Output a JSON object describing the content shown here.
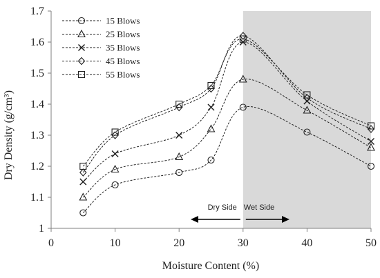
{
  "chart_data": {
    "type": "line",
    "xlabel": "Moisture Content (%)",
    "ylabel": "Dry Density  (g/cm³)",
    "xlim": [
      0,
      50
    ],
    "ylim": [
      1,
      1.7
    ],
    "xticks": [
      "0",
      "10",
      "20",
      "30",
      "40",
      "50"
    ],
    "yticks": [
      "1",
      "1.1",
      "1.2",
      "1.3",
      "1.4",
      "1.5",
      "1.6",
      "1.7"
    ],
    "grid": false,
    "legend": "top-left",
    "shaded_region": {
      "x_from": 30,
      "x_to": 50,
      "color": "#d9d9d9"
    },
    "annotations": {
      "dry_side": "Dry Side",
      "wet_side": "Wet Side"
    },
    "x": [
      5,
      10,
      20,
      25,
      30,
      40,
      50
    ],
    "series": [
      {
        "name": "15 Blows",
        "marker": "circle",
        "values": [
          1.05,
          1.14,
          1.18,
          1.22,
          1.39,
          1.31,
          1.2
        ]
      },
      {
        "name": "25 Blows",
        "marker": "triangle",
        "values": [
          1.1,
          1.19,
          1.23,
          1.32,
          1.48,
          1.38,
          1.26
        ]
      },
      {
        "name": "35 Blows",
        "marker": "x",
        "values": [
          1.15,
          1.24,
          1.3,
          1.39,
          1.6,
          1.41,
          1.28
        ]
      },
      {
        "name": "45 Blows",
        "marker": "diamond",
        "values": [
          1.18,
          1.3,
          1.39,
          1.45,
          1.62,
          1.42,
          1.32
        ]
      },
      {
        "name": "55 Blows",
        "marker": "square",
        "values": [
          1.2,
          1.31,
          1.4,
          1.46,
          1.61,
          1.43,
          1.33
        ]
      }
    ]
  }
}
